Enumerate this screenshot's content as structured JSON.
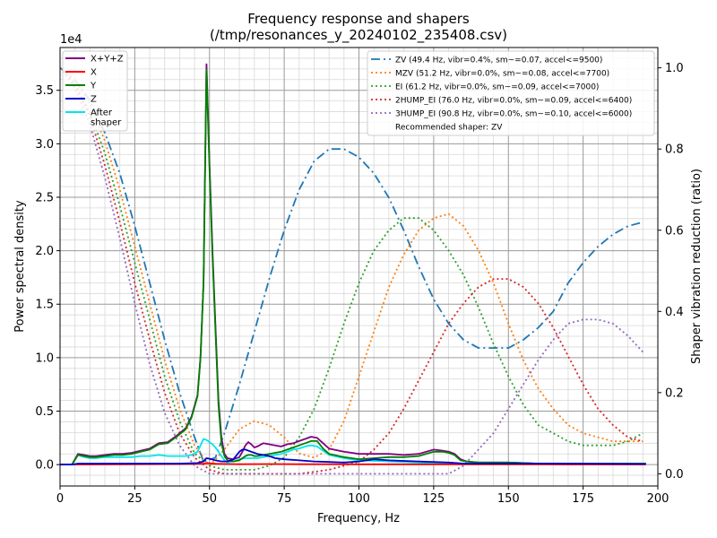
{
  "chart_data": {
    "type": "line",
    "title": "Frequency response and shapers",
    "subtitle": "(/tmp/resonances_y_20240102_235408.csv)",
    "xlabel": "Frequency, Hz",
    "ylabel": "Power spectral density",
    "y2label": "Shaper vibration reduction (ratio)",
    "offset_text": "1e4",
    "xlim": [
      0,
      200
    ],
    "ylim": [
      -0.2,
      3.9
    ],
    "y2lim": [
      -0.03,
      1.05
    ],
    "x_ticks": [
      "0",
      "25",
      "50",
      "75",
      "100",
      "125",
      "150",
      "175",
      "200"
    ],
    "y_ticks": [
      "0.0",
      "0.5",
      "1.0",
      "1.5",
      "2.0",
      "2.5",
      "3.0",
      "3.5"
    ],
    "y2_ticks": [
      "0.0",
      "0.2",
      "0.4",
      "0.6",
      "0.8",
      "1.0"
    ],
    "grid": true,
    "psd_legend_position": "top-left",
    "shaper_legend_position": "top-right",
    "recommended": "Recommended shaper: ZV",
    "psd_series": [
      {
        "name": "X+Y+Z",
        "color": "#800080",
        "x": [
          0,
          4,
          6,
          8,
          10,
          12,
          15,
          18,
          21,
          24,
          27,
          30,
          33,
          36,
          39,
          42,
          44,
          46,
          47,
          48,
          49,
          50,
          51,
          52,
          53,
          54,
          55,
          56,
          58,
          60,
          61,
          62,
          63,
          64,
          65,
          66,
          68,
          70,
          72,
          74,
          76,
          78,
          80,
          82,
          84,
          86,
          88,
          90,
          95,
          100,
          105,
          110,
          115,
          120,
          125,
          128,
          130,
          132,
          134,
          136,
          140,
          150,
          160,
          170,
          180,
          190,
          196
        ],
        "y": [
          0,
          0,
          0.1,
          0.09,
          0.08,
          0.08,
          0.09,
          0.1,
          0.1,
          0.11,
          0.13,
          0.15,
          0.2,
          0.21,
          0.27,
          0.34,
          0.45,
          0.65,
          1.0,
          1.7,
          3.75,
          2.8,
          2.0,
          1.3,
          0.6,
          0.25,
          0.1,
          0.06,
          0.05,
          0.07,
          0.12,
          0.18,
          0.21,
          0.19,
          0.16,
          0.17,
          0.2,
          0.19,
          0.18,
          0.17,
          0.19,
          0.2,
          0.22,
          0.24,
          0.26,
          0.25,
          0.2,
          0.15,
          0.12,
          0.1,
          0.1,
          0.1,
          0.09,
          0.1,
          0.14,
          0.13,
          0.12,
          0.1,
          0.05,
          0.03,
          0.02,
          0.02,
          0.01,
          0.01,
          0.01,
          0.01,
          0.01
        ]
      },
      {
        "name": "X",
        "color": "#ff0000",
        "x": [
          0,
          20,
          40,
          46,
          48,
          49,
          50,
          52,
          56,
          60,
          70,
          80,
          100,
          120,
          140,
          160,
          196
        ],
        "y": [
          0,
          0.003,
          0.005,
          0.008,
          0.01,
          0.015,
          0.012,
          0.008,
          0.005,
          0.004,
          0.005,
          0.004,
          0.003,
          0.003,
          0.002,
          0.002,
          0.001
        ]
      },
      {
        "name": "Y",
        "color": "#008000",
        "x": [
          0,
          4,
          6,
          8,
          10,
          12,
          15,
          18,
          21,
          24,
          27,
          30,
          33,
          36,
          39,
          42,
          44,
          46,
          47,
          48,
          49,
          50,
          51,
          52,
          53,
          54,
          55,
          56,
          58,
          60,
          61,
          62,
          63,
          64,
          65,
          66,
          68,
          70,
          72,
          74,
          76,
          78,
          80,
          82,
          84,
          86,
          88,
          90,
          95,
          100,
          105,
          110,
          115,
          120,
          125,
          128,
          130,
          132,
          134,
          136,
          140,
          150,
          160,
          170,
          180,
          190,
          196
        ],
        "y": [
          0,
          0,
          0.09,
          0.08,
          0.07,
          0.07,
          0.08,
          0.09,
          0.09,
          0.1,
          0.12,
          0.14,
          0.19,
          0.2,
          0.26,
          0.33,
          0.44,
          0.64,
          1.0,
          1.7,
          3.7,
          2.75,
          1.95,
          1.25,
          0.55,
          0.2,
          0.08,
          0.04,
          0.03,
          0.04,
          0.06,
          0.08,
          0.09,
          0.09,
          0.08,
          0.08,
          0.09,
          0.1,
          0.11,
          0.12,
          0.14,
          0.16,
          0.18,
          0.2,
          0.22,
          0.22,
          0.15,
          0.1,
          0.07,
          0.05,
          0.06,
          0.07,
          0.07,
          0.08,
          0.12,
          0.12,
          0.11,
          0.09,
          0.04,
          0.03,
          0.02,
          0.02,
          0.01,
          0.01,
          0.01,
          0.01,
          0.01
        ]
      },
      {
        "name": "Z",
        "color": "#0000cc",
        "x": [
          0,
          4,
          6,
          10,
          20,
          30,
          40,
          46,
          48,
          49,
          50,
          52,
          54,
          56,
          58,
          60,
          61,
          62,
          63,
          64,
          65,
          66,
          68,
          70,
          72,
          75,
          80,
          85,
          90,
          95,
          100,
          105,
          110,
          120,
          130,
          135,
          140,
          160,
          196
        ],
        "y": [
          0,
          0,
          0.01,
          0.01,
          0.01,
          0.01,
          0.01,
          0.015,
          0.03,
          0.06,
          0.055,
          0.04,
          0.03,
          0.03,
          0.05,
          0.12,
          0.14,
          0.14,
          0.13,
          0.12,
          0.11,
          0.1,
          0.09,
          0.08,
          0.06,
          0.05,
          0.04,
          0.03,
          0.025,
          0.02,
          0.03,
          0.05,
          0.04,
          0.03,
          0.02,
          0.01,
          0.01,
          0.01,
          0.005
        ]
      },
      {
        "name": "After\nshaper",
        "color": "#00e5ee",
        "x": [
          0,
          4,
          6,
          8,
          10,
          12,
          15,
          18,
          21,
          24,
          27,
          30,
          33,
          36,
          39,
          42,
          44,
          46,
          47,
          48,
          49,
          50,
          51,
          52,
          53,
          54,
          55,
          56,
          58,
          60,
          62,
          64,
          66,
          68,
          70,
          72,
          74,
          76,
          78,
          80,
          82,
          84,
          86,
          88,
          90,
          95,
          100,
          110,
          120,
          130,
          135,
          140,
          160,
          196
        ],
        "y": [
          0,
          0,
          0.09,
          0.07,
          0.06,
          0.06,
          0.07,
          0.07,
          0.07,
          0.07,
          0.08,
          0.08,
          0.09,
          0.08,
          0.08,
          0.08,
          0.09,
          0.12,
          0.18,
          0.24,
          0.23,
          0.21,
          0.19,
          0.16,
          0.12,
          0.08,
          0.04,
          0.02,
          0.03,
          0.05,
          0.06,
          0.06,
          0.06,
          0.07,
          0.08,
          0.09,
          0.1,
          0.12,
          0.14,
          0.15,
          0.17,
          0.18,
          0.17,
          0.13,
          0.09,
          0.06,
          0.04,
          0.03,
          0.02,
          0.01,
          0.01,
          0.005,
          0.005,
          0.005
        ]
      }
    ],
    "shaper_series": [
      {
        "name": "ZV (49.4 Hz, vibr=0.4%, sm~=0.07, accel<=9500)",
        "color": "#1f77b4",
        "dash": "10,4,2,4",
        "x": [
          0,
          5,
          10,
          15,
          20,
          25,
          30,
          35,
          40,
          45,
          48,
          52,
          55,
          60,
          65,
          70,
          75,
          80,
          85,
          90,
          95,
          100,
          105,
          110,
          115,
          120,
          125,
          130,
          135,
          140,
          145,
          150,
          155,
          160,
          165,
          170,
          175,
          180,
          185,
          190,
          195
        ],
        "y": [
          1.0,
          0.97,
          0.92,
          0.84,
          0.74,
          0.61,
          0.47,
          0.33,
          0.2,
          0.09,
          0.03,
          0.04,
          0.1,
          0.22,
          0.35,
          0.48,
          0.6,
          0.7,
          0.77,
          0.8,
          0.8,
          0.78,
          0.74,
          0.68,
          0.6,
          0.51,
          0.43,
          0.37,
          0.33,
          0.31,
          0.31,
          0.31,
          0.33,
          0.36,
          0.4,
          0.47,
          0.52,
          0.56,
          0.59,
          0.61,
          0.62
        ]
      },
      {
        "name": "MZV (51.2 Hz, vibr=0.0%, sm~=0.08, accel<=7700)",
        "color": "#ff7f0e",
        "dash": "2,3",
        "x": [
          0,
          5,
          10,
          15,
          20,
          25,
          30,
          35,
          40,
          45,
          50,
          55,
          60,
          65,
          70,
          75,
          80,
          85,
          90,
          95,
          100,
          105,
          110,
          115,
          120,
          125,
          130,
          135,
          140,
          145,
          150,
          155,
          160,
          165,
          170,
          175,
          180,
          185,
          190,
          195
        ],
        "y": [
          1.0,
          0.97,
          0.91,
          0.82,
          0.7,
          0.56,
          0.42,
          0.28,
          0.16,
          0.07,
          0.02,
          0.06,
          0.11,
          0.13,
          0.12,
          0.09,
          0.05,
          0.04,
          0.06,
          0.13,
          0.24,
          0.35,
          0.46,
          0.54,
          0.6,
          0.63,
          0.64,
          0.61,
          0.55,
          0.47,
          0.37,
          0.28,
          0.21,
          0.16,
          0.12,
          0.1,
          0.09,
          0.08,
          0.08,
          0.08
        ]
      },
      {
        "name": "EI (61.2 Hz, vibr=0.0%, sm~=0.09, accel<=7000)",
        "color": "#2ca02c",
        "dash": "2,3",
        "x": [
          0,
          5,
          10,
          15,
          20,
          25,
          30,
          35,
          40,
          45,
          50,
          55,
          60,
          65,
          70,
          75,
          80,
          85,
          90,
          95,
          100,
          105,
          110,
          115,
          120,
          125,
          130,
          135,
          140,
          145,
          150,
          155,
          160,
          165,
          170,
          175,
          180,
          185,
          190,
          195
        ],
        "y": [
          1.0,
          0.96,
          0.89,
          0.79,
          0.66,
          0.52,
          0.38,
          0.24,
          0.13,
          0.05,
          0.02,
          0.01,
          0.01,
          0.01,
          0.02,
          0.04,
          0.09,
          0.16,
          0.26,
          0.37,
          0.47,
          0.55,
          0.6,
          0.63,
          0.63,
          0.6,
          0.55,
          0.49,
          0.41,
          0.32,
          0.24,
          0.17,
          0.12,
          0.1,
          0.08,
          0.07,
          0.07,
          0.07,
          0.08,
          0.1
        ]
      },
      {
        "name": "2HUMP_EI (76.0 Hz, vibr=0.0%, sm~=0.09, accel<=6400)",
        "color": "#d62728",
        "dash": "2,3",
        "x": [
          0,
          5,
          10,
          15,
          20,
          25,
          30,
          35,
          40,
          45,
          50,
          55,
          60,
          70,
          80,
          90,
          100,
          105,
          110,
          115,
          120,
          125,
          130,
          135,
          140,
          145,
          150,
          155,
          160,
          165,
          170,
          175,
          180,
          185,
          190,
          195
        ],
        "y": [
          1.0,
          0.96,
          0.88,
          0.76,
          0.62,
          0.47,
          0.33,
          0.2,
          0.1,
          0.04,
          0.01,
          0.0,
          0.0,
          0.0,
          0.0,
          0.01,
          0.03,
          0.06,
          0.1,
          0.16,
          0.23,
          0.3,
          0.37,
          0.42,
          0.46,
          0.48,
          0.48,
          0.46,
          0.42,
          0.36,
          0.29,
          0.22,
          0.16,
          0.12,
          0.09,
          0.08
        ]
      },
      {
        "name": "3HUMP_EI (90.8 Hz, vibr=0.0%, sm~=0.10, accel<=6000)",
        "color": "#9467bd",
        "dash": "2,3",
        "x": [
          0,
          5,
          10,
          15,
          20,
          25,
          30,
          35,
          40,
          45,
          50,
          55,
          60,
          80,
          100,
          120,
          130,
          135,
          140,
          145,
          150,
          155,
          160,
          165,
          170,
          175,
          180,
          185,
          190,
          195
        ],
        "y": [
          1.0,
          0.95,
          0.86,
          0.73,
          0.58,
          0.42,
          0.27,
          0.15,
          0.07,
          0.02,
          0.0,
          0.0,
          0.0,
          0.0,
          0.0,
          0.0,
          0.0,
          0.02,
          0.06,
          0.1,
          0.16,
          0.22,
          0.28,
          0.33,
          0.37,
          0.38,
          0.38,
          0.37,
          0.34,
          0.3
        ]
      }
    ]
  }
}
